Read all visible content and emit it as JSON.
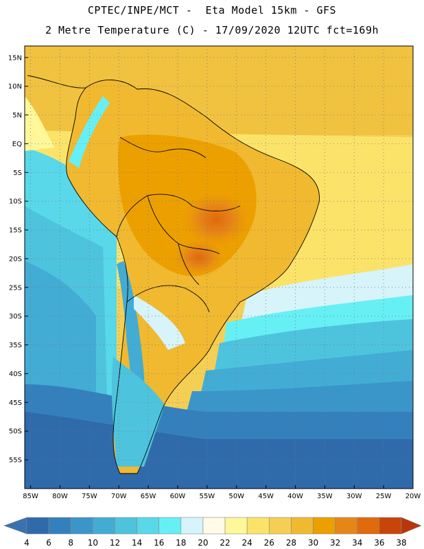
{
  "header": {
    "line1": "CPTEC/INPE/MCT -  Eta Model 15km - GFS",
    "line2": "2 Metre Temperature (C) - 17/09/2020 12UTC fct=169h"
  },
  "map": {
    "lon_range": [
      -86,
      -20
    ],
    "lat_range": [
      -60,
      17
    ],
    "lon_ticks": [
      {
        "v": -85,
        "label": "85W"
      },
      {
        "v": -80,
        "label": "80W"
      },
      {
        "v": -75,
        "label": "75W"
      },
      {
        "v": -70,
        "label": "70W"
      },
      {
        "v": -65,
        "label": "65W"
      },
      {
        "v": -60,
        "label": "60W"
      },
      {
        "v": -55,
        "label": "55W"
      },
      {
        "v": -50,
        "label": "50W"
      },
      {
        "v": -45,
        "label": "45W"
      },
      {
        "v": -40,
        "label": "40W"
      },
      {
        "v": -35,
        "label": "35W"
      },
      {
        "v": -30,
        "label": "30W"
      },
      {
        "v": -25,
        "label": "25W"
      },
      {
        "v": -20,
        "label": "20W"
      }
    ],
    "lat_ticks": [
      {
        "v": 15,
        "label": "15N"
      },
      {
        "v": 10,
        "label": "10N"
      },
      {
        "v": 5,
        "label": "5N"
      },
      {
        "v": 0,
        "label": "EQ"
      },
      {
        "v": -5,
        "label": "5S"
      },
      {
        "v": -10,
        "label": "10S"
      },
      {
        "v": -15,
        "label": "15S"
      },
      {
        "v": -20,
        "label": "20S"
      },
      {
        "v": -25,
        "label": "25S"
      },
      {
        "v": -30,
        "label": "30S"
      },
      {
        "v": -35,
        "label": "35S"
      },
      {
        "v": -40,
        "label": "40S"
      },
      {
        "v": -45,
        "label": "45S"
      },
      {
        "v": -50,
        "label": "50S"
      },
      {
        "v": -55,
        "label": "55S"
      }
    ],
    "gridlines": true
  },
  "colorbar": {
    "labels": [
      "4",
      "6",
      "8",
      "10",
      "12",
      "14",
      "16",
      "18",
      "20",
      "22",
      "24",
      "26",
      "28",
      "30",
      "32",
      "34",
      "36",
      "38"
    ],
    "low_color": "#3a72b0",
    "high_color": "#b8360a",
    "colors": [
      "#2f6aab",
      "#3480bd",
      "#3a96c9",
      "#43acd4",
      "#4ec3de",
      "#58d8e8",
      "#66f0f5",
      "#d6f4fa",
      "#fffbe6",
      "#fff79a",
      "#fbe36a",
      "#f5cf54",
      "#f0b930",
      "#eca000",
      "#e68518",
      "#e06a0c",
      "#c8450a"
    ]
  }
}
